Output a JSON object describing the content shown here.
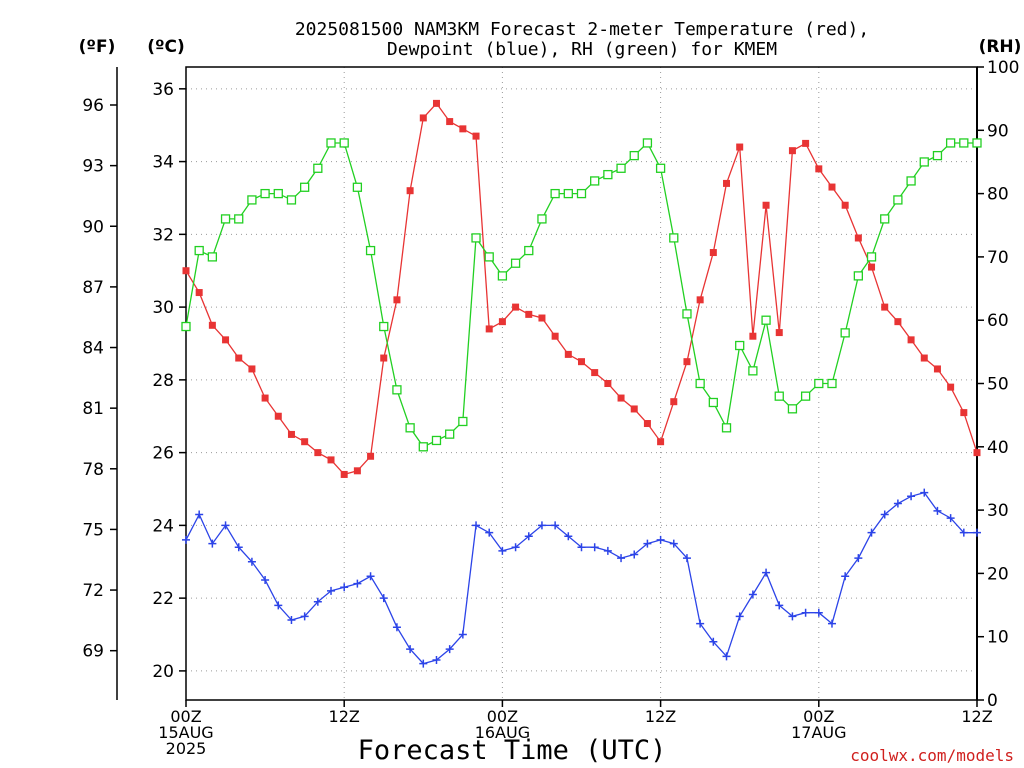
{
  "chart_data": {
    "type": "line",
    "title_lines": [
      "2025081500 NAM3KM Forecast 2-meter Temperature (red),",
      "Dewpoint (blue), RH (green) for KMEM"
    ],
    "xlabel": "Forecast Time (UTC)",
    "credit": "coolwx.com/models",
    "units": {
      "left_f": "(ºF)",
      "left_c": "(ºC)",
      "right": "(RH)"
    },
    "x_range_hours": [
      0,
      60
    ],
    "x_ticks": [
      {
        "hour": 0,
        "lines": [
          "00Z",
          "15AUG",
          "2025"
        ]
      },
      {
        "hour": 12,
        "lines": [
          "12Z"
        ]
      },
      {
        "hour": 24,
        "lines": [
          "00Z",
          "16AUG"
        ]
      },
      {
        "hour": 36,
        "lines": [
          "12Z"
        ]
      },
      {
        "hour": 48,
        "lines": [
          "00Z",
          "17AUG"
        ]
      },
      {
        "hour": 60,
        "lines": [
          "12Z"
        ]
      }
    ],
    "y_celsius": {
      "range": [
        19.2,
        36.6
      ],
      "ticks": [
        20,
        22,
        24,
        26,
        28,
        30,
        32,
        34,
        36
      ]
    },
    "y_fahrenheit_ticks": [
      69,
      72,
      75,
      78,
      81,
      84,
      87,
      90,
      93,
      96
    ],
    "y_rh": {
      "range": [
        0,
        100
      ],
      "ticks": [
        0,
        10,
        20,
        30,
        40,
        50,
        60,
        70,
        80,
        90,
        100
      ]
    },
    "hours": [
      0,
      1,
      2,
      3,
      4,
      5,
      6,
      7,
      8,
      9,
      10,
      11,
      12,
      13,
      14,
      15,
      16,
      17,
      18,
      19,
      20,
      21,
      22,
      23,
      24,
      25,
      26,
      27,
      28,
      29,
      30,
      31,
      32,
      33,
      34,
      35,
      36,
      37,
      38,
      39,
      40,
      41,
      42,
      43,
      44,
      45,
      46,
      47,
      48,
      49,
      50,
      51,
      52,
      53,
      54,
      55,
      56,
      57,
      58,
      59,
      60
    ],
    "series": [
      {
        "name": "Temperature",
        "axis": "celsius",
        "color": "#e83434",
        "marker": "filled-square",
        "values": [
          31.0,
          30.4,
          29.5,
          29.1,
          28.6,
          28.3,
          27.5,
          27.0,
          26.5,
          26.3,
          26.0,
          25.8,
          25.4,
          25.5,
          25.9,
          28.6,
          30.2,
          33.2,
          35.2,
          35.6,
          35.1,
          34.9,
          34.7,
          29.4,
          29.6,
          30.0,
          29.8,
          29.7,
          29.2,
          28.7,
          28.5,
          28.2,
          27.9,
          27.5,
          27.2,
          26.8,
          26.3,
          27.4,
          28.5,
          30.2,
          31.5,
          33.4,
          34.4,
          29.2,
          32.8,
          29.3,
          34.3,
          34.5,
          33.8,
          33.3,
          32.8,
          31.9,
          31.1,
          30.0,
          29.6,
          29.1,
          28.6,
          28.3,
          27.8,
          27.1,
          26.0
        ]
      },
      {
        "name": "Dewpoint",
        "axis": "celsius",
        "color": "#2c44e8",
        "marker": "plus",
        "values": [
          23.6,
          24.3,
          23.5,
          24.0,
          23.4,
          23.0,
          22.5,
          21.8,
          21.4,
          21.5,
          21.9,
          22.2,
          22.3,
          22.4,
          22.6,
          22.0,
          21.2,
          20.6,
          20.2,
          20.3,
          20.6,
          21.0,
          24.0,
          23.8,
          23.3,
          23.4,
          23.7,
          24.0,
          24.0,
          23.7,
          23.4,
          23.4,
          23.3,
          23.1,
          23.2,
          23.5,
          23.6,
          23.5,
          23.1,
          21.3,
          20.8,
          20.4,
          21.5,
          22.1,
          22.7,
          21.8,
          21.5,
          21.6,
          21.6,
          21.3,
          22.6,
          23.1,
          23.8,
          24.3,
          24.6,
          24.8,
          24.9,
          24.4,
          24.2,
          23.8,
          23.8
        ]
      },
      {
        "name": "RH",
        "axis": "rh",
        "color": "#22d022",
        "marker": "open-square",
        "values": [
          59,
          71,
          70,
          76,
          76,
          79,
          80,
          80,
          79,
          81,
          84,
          88,
          88,
          81,
          71,
          59,
          49,
          43,
          40,
          41,
          42,
          44,
          73,
          70,
          67,
          69,
          71,
          76,
          80,
          80,
          80,
          82,
          83,
          84,
          86,
          88,
          84,
          73,
          61,
          50,
          47,
          43,
          56,
          52,
          60,
          48,
          46,
          48,
          50,
          50,
          58,
          67,
          70,
          76,
          79,
          82,
          85,
          86,
          88,
          88,
          88
        ]
      }
    ]
  }
}
